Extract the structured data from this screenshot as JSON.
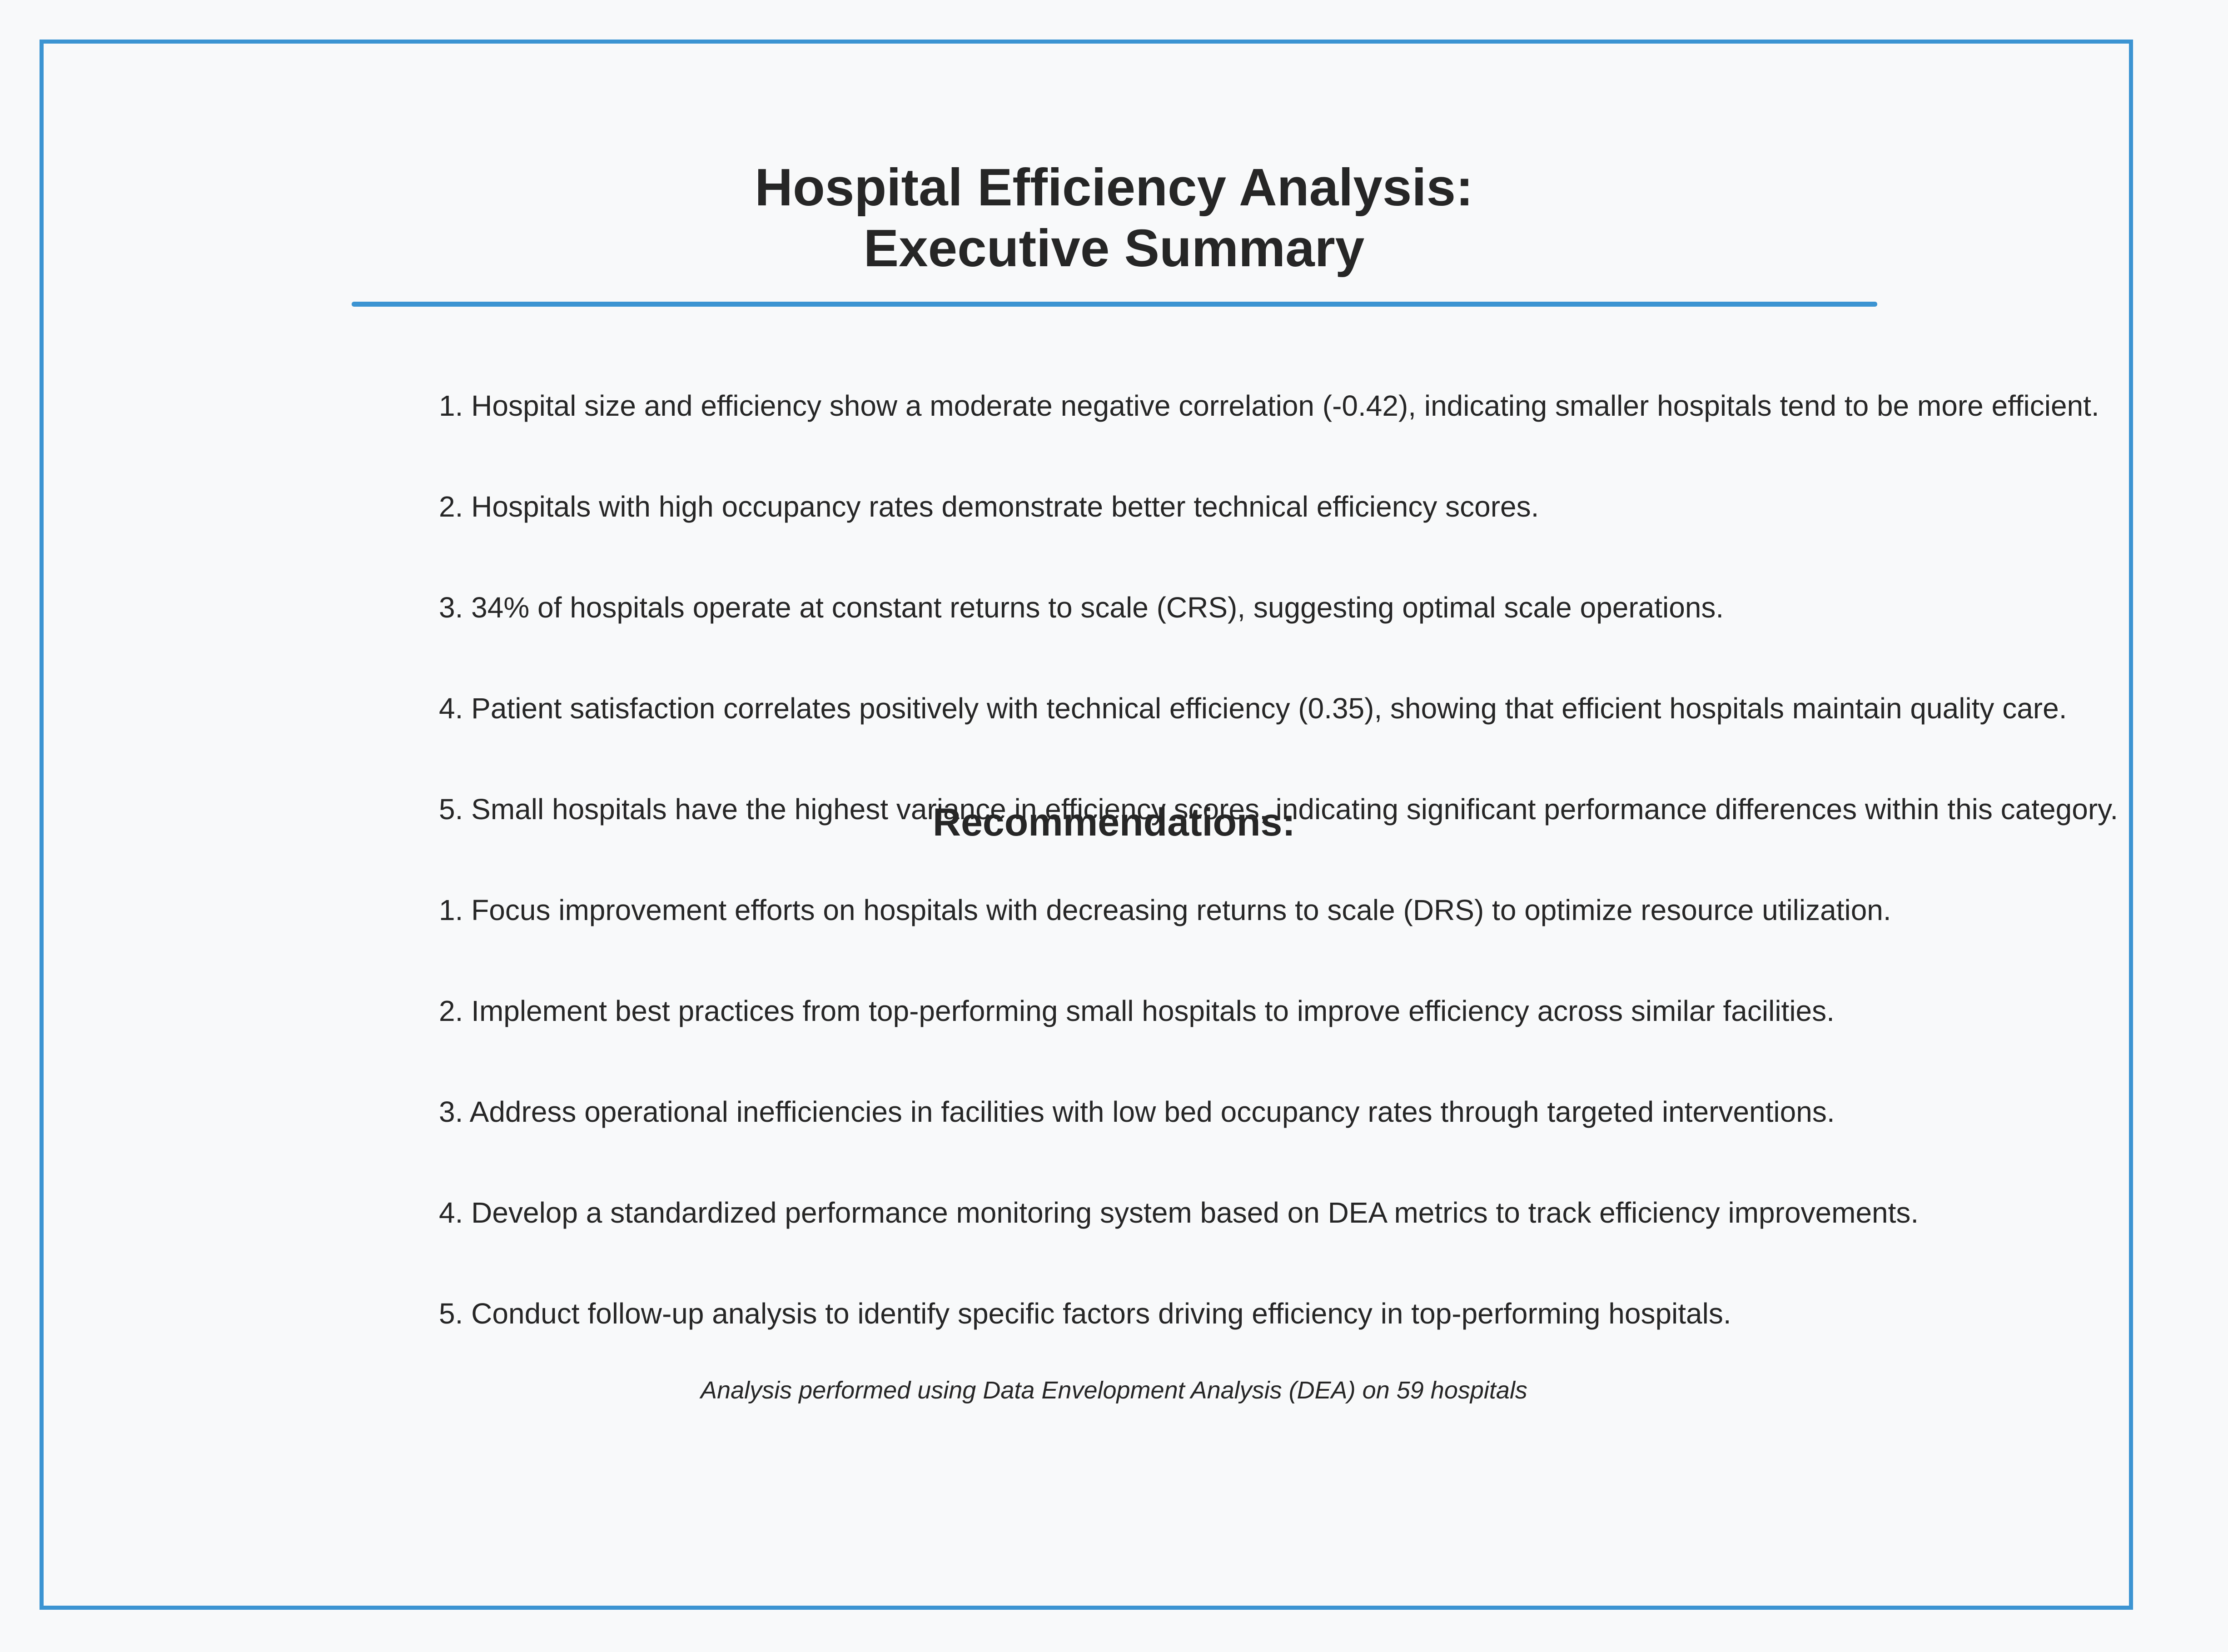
{
  "colors": {
    "background": "#f8f9fa",
    "accent": "#3c94d2",
    "text": "#262626"
  },
  "header": {
    "title_line1": "Hospital Efficiency Analysis:",
    "title_line2": "Executive Summary"
  },
  "findings": [
    "1. Hospital size and efficiency show a moderate negative correlation (-0.42), indicating smaller hospitals tend to be more efficient.",
    "2. Hospitals with high occupancy rates demonstrate better technical efficiency scores.",
    "3. 34% of hospitals operate at constant returns to scale (CRS), suggesting optimal scale operations.",
    "4. Patient satisfaction correlates positively with technical efficiency (0.35), showing that efficient hospitals maintain quality care.",
    "5. Small hospitals have the highest variance in efficiency scores, indicating significant performance differences within this category."
  ],
  "recommendations": {
    "heading": "Recommendations:",
    "items": [
      "1. Focus improvement efforts on hospitals with decreasing returns to scale (DRS) to optimize resource utilization.",
      "2. Implement best practices from top-performing small hospitals to improve efficiency across similar facilities.",
      "3. Address operational inefficiencies in facilities with low bed occupancy rates through targeted interventions.",
      "4. Develop a standardized performance monitoring system based on DEA metrics to track efficiency improvements.",
      "5. Conduct follow-up analysis to identify specific factors driving efficiency in top-performing hospitals."
    ]
  },
  "footer": {
    "note": "Analysis performed using Data Envelopment Analysis (DEA) on 59 hospitals"
  }
}
